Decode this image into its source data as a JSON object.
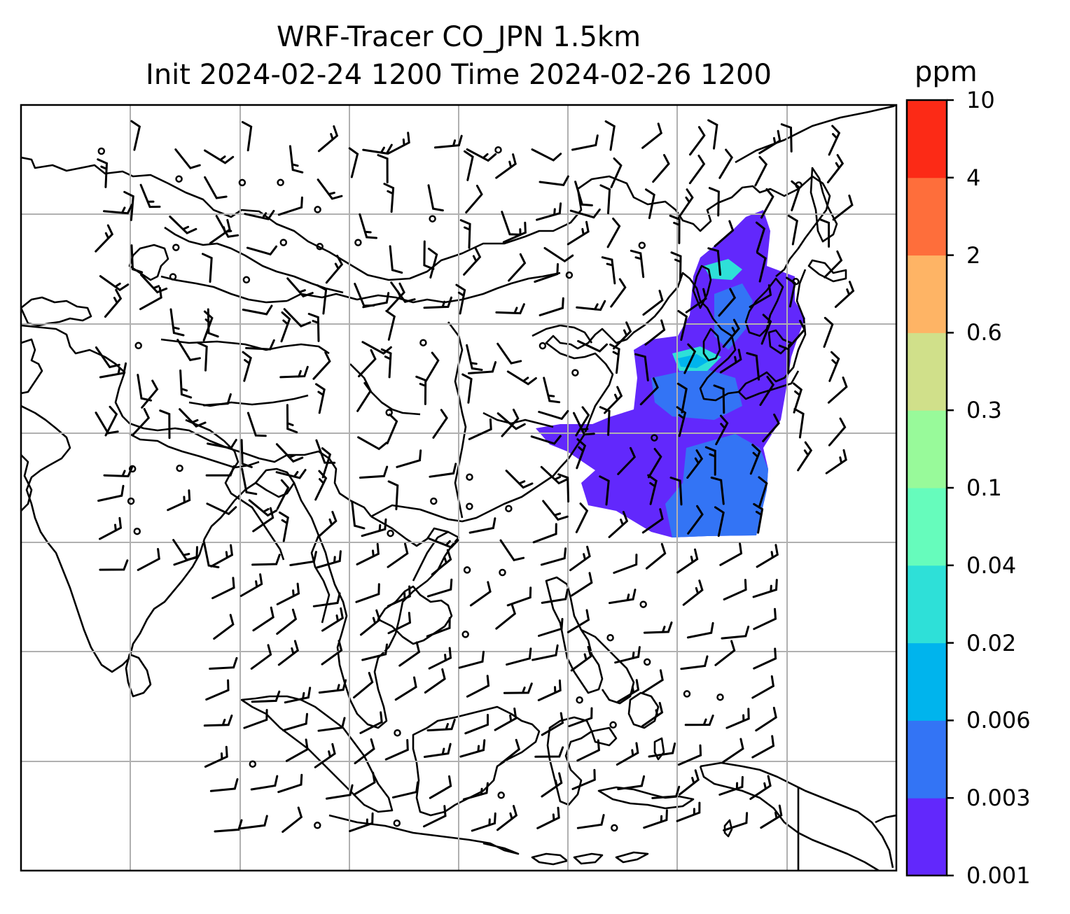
{
  "title": {
    "line1": "WRF-Tracer CO_JPN 1.5km",
    "line2": "Init 2024-02-24 1200 Time 2024-02-26 1200"
  },
  "colorbar": {
    "unit": "ppm",
    "levels": [
      {
        "label": "0.001",
        "color": "#6228fc"
      },
      {
        "label": "0.003",
        "color": "#3374f5"
      },
      {
        "label": "0.006",
        "color": "#00b4ed"
      },
      {
        "label": "0.02",
        "color": "#2ee0d8"
      },
      {
        "label": "0.04",
        "color": "#66fcbc"
      },
      {
        "label": "0.1",
        "color": "#98fa9a"
      },
      {
        "label": "0.3",
        "color": "#d0e08a"
      },
      {
        "label": "0.6",
        "color": "#feb465"
      },
      {
        "label": "2",
        "color": "#fe6e3b"
      },
      {
        "label": "4",
        "color": "#fc2a16"
      },
      {
        "label": "10",
        "color": null
      }
    ]
  },
  "map": {
    "gridlines": true,
    "overlay": "wind-barbs",
    "tracer_colors": {
      "low": "#6228fc",
      "mid": "#3374f5",
      "high": "#2ee0d8",
      "peak": "#00b4ed"
    }
  }
}
